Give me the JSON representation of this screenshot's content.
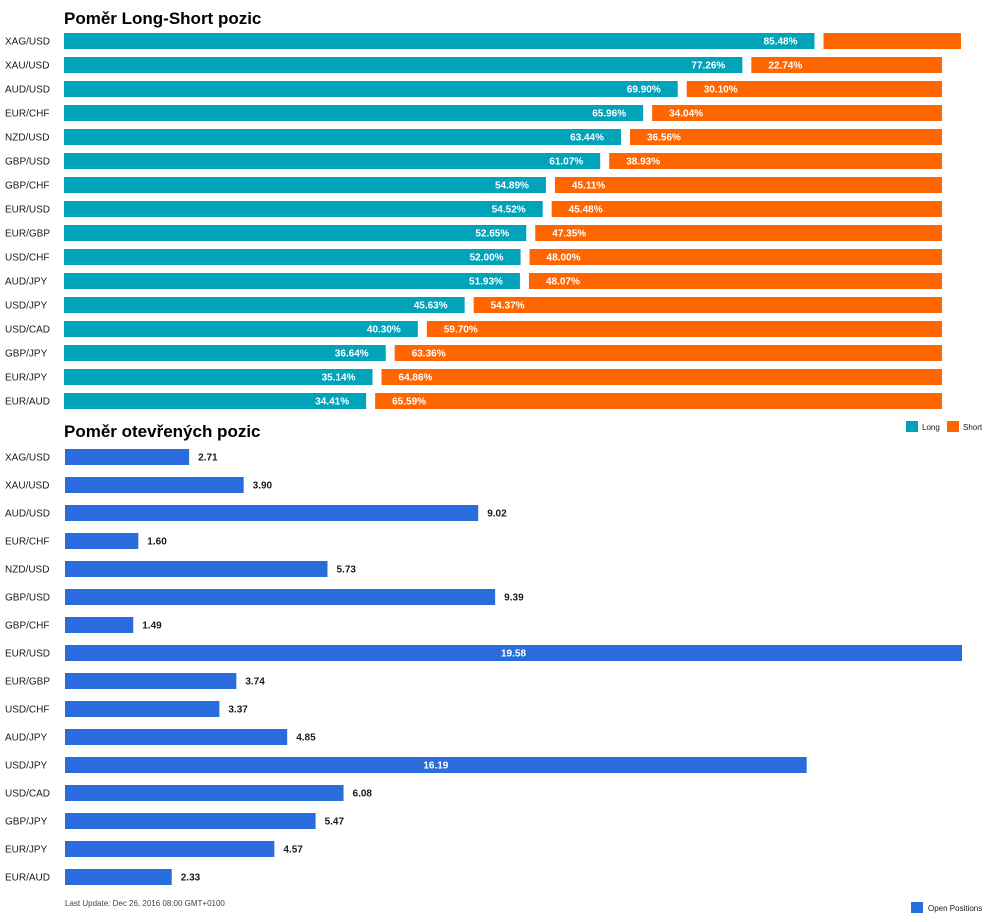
{
  "colors": {
    "long": "#00a3b9",
    "short": "#ff6600",
    "open": "#2b6cdc"
  },
  "chart_data": [
    {
      "type": "bar",
      "stacked": true,
      "orientation": "horizontal",
      "title": "Poměr Long-Short pozic",
      "categories": [
        "XAG/USD",
        "XAU/USD",
        "AUD/USD",
        "EUR/CHF",
        "NZD/USD",
        "GBP/USD",
        "GBP/CHF",
        "EUR/USD",
        "EUR/GBP",
        "USD/CHF",
        "AUD/JPY",
        "USD/JPY",
        "USD/CAD",
        "GBP/JPY",
        "EUR/JPY",
        "EUR/AUD"
      ],
      "series": [
        {
          "name": "Long",
          "values": [
            85.48,
            77.26,
            69.9,
            65.96,
            63.44,
            61.07,
            54.89,
            54.52,
            52.65,
            52.0,
            51.93,
            45.63,
            40.3,
            36.64,
            35.14,
            34.41
          ],
          "labels": [
            "85.48%",
            "77.26%",
            "69.90%",
            "65.96%",
            "63.44%",
            "61.07%",
            "54.89%",
            "54.52%",
            "52.65%",
            "52.00%",
            "51.93%",
            "45.63%",
            "40.30%",
            "36.64%",
            "35.14%",
            "34.41%"
          ]
        },
        {
          "name": "Short",
          "values": [
            14.52,
            22.74,
            30.1,
            34.04,
            36.56,
            38.93,
            45.11,
            45.48,
            47.35,
            48.0,
            48.07,
            54.37,
            59.7,
            63.36,
            64.86,
            65.59
          ],
          "labels": [
            "",
            "22.74%",
            "30.10%",
            "34.04%",
            "36.56%",
            "38.93%",
            "45.11%",
            "45.48%",
            "47.35%",
            "48.00%",
            "48.07%",
            "54.37%",
            "59.70%",
            "63.36%",
            "64.86%",
            "65.59%"
          ]
        }
      ],
      "xlim": [
        0,
        100
      ],
      "grid": false,
      "legend": "top-right, below chart"
    },
    {
      "type": "bar",
      "orientation": "horizontal",
      "title": "Poměr otevřených pozic",
      "categories": [
        "XAG/USD",
        "XAU/USD",
        "AUD/USD",
        "EUR/CHF",
        "NZD/USD",
        "GBP/USD",
        "GBP/CHF",
        "EUR/USD",
        "EUR/GBP",
        "USD/CHF",
        "AUD/JPY",
        "USD/JPY",
        "USD/CAD",
        "GBP/JPY",
        "EUR/JPY",
        "EUR/AUD"
      ],
      "series": [
        {
          "name": "Open Positions",
          "values": [
            2.71,
            3.9,
            9.02,
            1.6,
            5.73,
            9.39,
            1.49,
            19.58,
            3.74,
            3.37,
            4.85,
            16.19,
            6.08,
            5.47,
            4.57,
            2.33
          ],
          "labels": [
            "2.71",
            "3.90",
            "9.02",
            "1.60",
            "5.73",
            "9.39",
            "1.49",
            "19.58",
            "3.74",
            "3.37",
            "4.85",
            "16.19",
            "6.08",
            "5.47",
            "4.57",
            "2.33"
          ]
        }
      ],
      "xlim": [
        0,
        19.58
      ],
      "grid": false,
      "legend": "bottom-right"
    }
  ],
  "footnote": "Last Update: Dec 26, 2016 08:00 GMT+0100"
}
